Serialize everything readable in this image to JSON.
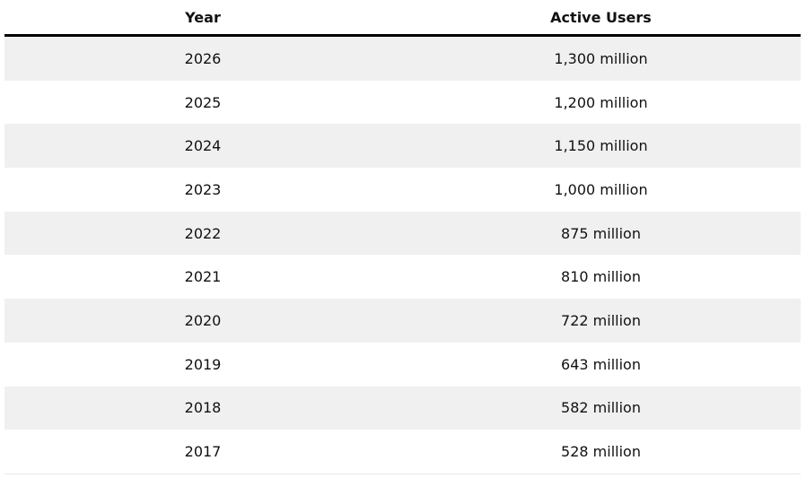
{
  "table": {
    "header": [
      "Year",
      "Active Users"
    ],
    "rows": [
      [
        "2026",
        "1,300 million"
      ],
      [
        "2025",
        "1,200 million"
      ],
      [
        "2024",
        "1,150 million"
      ],
      [
        "2023",
        "1,000 million"
      ],
      [
        "2022",
        "875 million"
      ],
      [
        "2021",
        "810 million"
      ],
      [
        "2020",
        "722 million"
      ],
      [
        "2019",
        "643 million"
      ],
      [
        "2018",
        "582 million"
      ],
      [
        "2017",
        "528 million"
      ]
    ]
  }
}
